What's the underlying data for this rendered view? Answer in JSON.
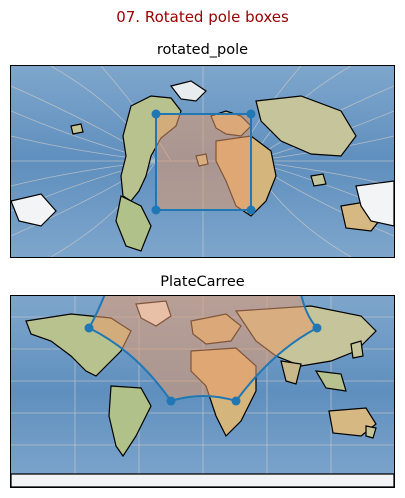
{
  "figure": {
    "title": "07. Rotated pole boxes",
    "title_color": "#990000"
  },
  "panels": [
    {
      "title": "rotated_pole",
      "projection": "rotated_pole",
      "box_corners": [
        "top-left",
        "top-right",
        "bottom-right",
        "bottom-left"
      ],
      "box_style": "straight rectangle",
      "gridlines": true
    },
    {
      "title": "PlateCarree",
      "projection": "PlateCarree",
      "box_style": "curved region crossing the north pole",
      "gridlines": true
    }
  ],
  "colors": {
    "ocean": "#6e9ac3",
    "land": "#c7c79a",
    "coast": "#000000",
    "box_stroke": "#1f77b4",
    "box_fill": "#e89a6b",
    "gridline": "#c8c8c8"
  }
}
